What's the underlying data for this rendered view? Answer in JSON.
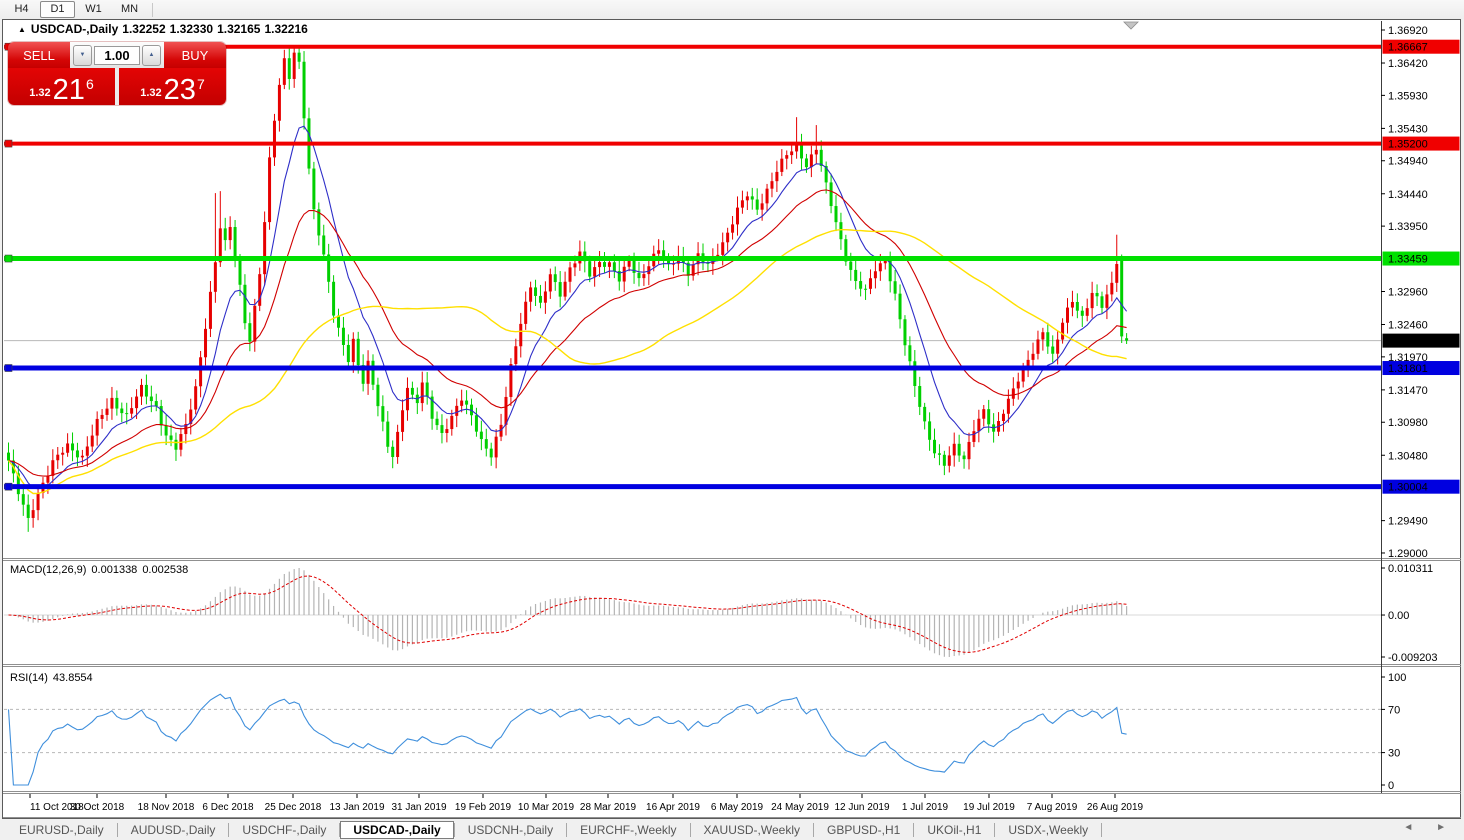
{
  "toolbar": {
    "timeframes": [
      {
        "label": "H4",
        "active": false
      },
      {
        "label": "D1",
        "active": true
      },
      {
        "label": "W1",
        "active": false
      },
      {
        "label": "MN",
        "active": false
      }
    ]
  },
  "icons": {
    "collapse_panel": "▲",
    "spin_up": "▲",
    "spin_down": "▼",
    "shift_marker": "▼",
    "tab_scroll": "◄ ►"
  },
  "chart": {
    "title": {
      "symbol": "USDCAD-,Daily",
      "open": "1.32252",
      "high": "1.32330",
      "low": "1.32165",
      "close": "1.32216"
    },
    "one_click": {
      "sell_label": "SELL",
      "buy_label": "BUY",
      "volume": "1.00",
      "sell_price": {
        "small": "1.32",
        "big": "21",
        "sup": "6"
      },
      "buy_price": {
        "small": "1.32",
        "big": "23",
        "sup": "7"
      }
    }
  },
  "chart_data": {
    "type": "candlestick+indicators",
    "symbol": "USDCAD",
    "timeframe": "Daily",
    "current_bar": {
      "open": 1.32252,
      "high": 1.3233,
      "low": 1.32165,
      "close": 1.32216
    },
    "num_candles": 228,
    "price_anchors": [
      [
        0,
        1.304
      ],
      [
        2,
        1.299
      ],
      [
        4,
        1.295
      ],
      [
        6,
        1.2992
      ],
      [
        9,
        1.3036
      ],
      [
        12,
        1.3062
      ],
      [
        15,
        1.3046
      ],
      [
        18,
        1.3096
      ],
      [
        21,
        1.3132
      ],
      [
        24,
        1.3108
      ],
      [
        27,
        1.3148
      ],
      [
        30,
        1.3122
      ],
      [
        32,
        1.3078
      ],
      [
        34,
        1.3058
      ],
      [
        36,
        1.3092
      ],
      [
        38,
        1.3152
      ],
      [
        40,
        1.3245
      ],
      [
        42,
        1.3338
      ],
      [
        43,
        1.3392
      ],
      [
        44,
        1.3368
      ],
      [
        45,
        1.3395
      ],
      [
        46,
        1.3348
      ],
      [
        47,
        1.3305
      ],
      [
        48,
        1.3252
      ],
      [
        49,
        1.3222
      ],
      [
        50,
        1.3268
      ],
      [
        51,
        1.3322
      ],
      [
        52,
        1.34
      ],
      [
        53,
        1.3495
      ],
      [
        54,
        1.356
      ],
      [
        55,
        1.3612
      ],
      [
        56,
        1.3648
      ],
      [
        57,
        1.3622
      ],
      [
        58,
        1.3655
      ],
      [
        59,
        1.3638
      ],
      [
        60,
        1.356
      ],
      [
        61,
        1.348
      ],
      [
        62,
        1.342
      ],
      [
        63,
        1.3388
      ],
      [
        64,
        1.3352
      ],
      [
        65,
        1.331
      ],
      [
        66,
        1.3262
      ],
      [
        67,
        1.3235
      ],
      [
        68,
        1.3212
      ],
      [
        69,
        1.3192
      ],
      [
        70,
        1.3222
      ],
      [
        71,
        1.3188
      ],
      [
        72,
        1.3162
      ],
      [
        73,
        1.3188
      ],
      [
        74,
        1.3155
      ],
      [
        75,
        1.3122
      ],
      [
        76,
        1.3092
      ],
      [
        77,
        1.3062
      ],
      [
        78,
        1.3048
      ],
      [
        79,
        1.3082
      ],
      [
        80,
        1.3122
      ],
      [
        81,
        1.3152
      ],
      [
        82,
        1.3135
      ],
      [
        83,
        1.3128
      ],
      [
        84,
        1.3155
      ],
      [
        85,
        1.3132
      ],
      [
        86,
        1.3108
      ],
      [
        88,
        1.3082
      ],
      [
        90,
        1.3105
      ],
      [
        92,
        1.3132
      ],
      [
        94,
        1.3108
      ],
      [
        96,
        1.3072
      ],
      [
        98,
        1.3048
      ],
      [
        100,
        1.3092
      ],
      [
        102,
        1.3182
      ],
      [
        104,
        1.3252
      ],
      [
        106,
        1.3305
      ],
      [
        108,
        1.3272
      ],
      [
        110,
        1.3322
      ],
      [
        112,
        1.3295
      ],
      [
        114,
        1.333
      ],
      [
        116,
        1.3352
      ],
      [
        118,
        1.3322
      ],
      [
        120,
        1.3342
      ],
      [
        122,
        1.3338
      ],
      [
        124,
        1.3312
      ],
      [
        126,
        1.3342
      ],
      [
        128,
        1.3315
      ],
      [
        130,
        1.3338
      ],
      [
        132,
        1.3358
      ],
      [
        134,
        1.3332
      ],
      [
        136,
        1.3352
      ],
      [
        138,
        1.3325
      ],
      [
        140,
        1.3348
      ],
      [
        142,
        1.3335
      ],
      [
        144,
        1.3358
      ],
      [
        146,
        1.3385
      ],
      [
        148,
        1.3418
      ],
      [
        150,
        1.3442
      ],
      [
        152,
        1.3422
      ],
      [
        154,
        1.345
      ],
      [
        156,
        1.3478
      ],
      [
        158,
        1.3502
      ],
      [
        160,
        1.3518
      ],
      [
        162,
        1.3488
      ],
      [
        164,
        1.3512
      ],
      [
        166,
        1.3455
      ],
      [
        168,
        1.3402
      ],
      [
        170,
        1.3348
      ],
      [
        172,
        1.3308
      ],
      [
        174,
        1.3295
      ],
      [
        176,
        1.3332
      ],
      [
        178,
        1.3345
      ],
      [
        180,
        1.3288
      ],
      [
        182,
        1.3215
      ],
      [
        184,
        1.3155
      ],
      [
        186,
        1.3098
      ],
      [
        188,
        1.3052
      ],
      [
        190,
        1.3032
      ],
      [
        192,
        1.3062
      ],
      [
        194,
        1.3045
      ],
      [
        196,
        1.3088
      ],
      [
        198,
        1.3112
      ],
      [
        200,
        1.3082
      ],
      [
        202,
        1.3118
      ],
      [
        204,
        1.3148
      ],
      [
        206,
        1.3175
      ],
      [
        208,
        1.3205
      ],
      [
        210,
        1.3238
      ],
      [
        212,
        1.3198
      ],
      [
        214,
        1.3248
      ],
      [
        216,
        1.3282
      ],
      [
        218,
        1.3258
      ],
      [
        220,
        1.3295
      ],
      [
        222,
        1.3272
      ],
      [
        224,
        1.3305
      ],
      [
        225,
        1.3343
      ],
      [
        226,
        1.3228
      ],
      [
        227,
        1.32216
      ]
    ],
    "bar_overrides": {
      "4": {
        "l": 1.2932
      },
      "42": {
        "h": 1.3445
      },
      "43": {
        "h": 1.3448
      },
      "56": {
        "h": 1.3662
      },
      "58": {
        "h": 1.36667
      },
      "160": {
        "h": 1.356
      },
      "164": {
        "h": 1.3548
      },
      "225": {
        "h": 1.3382
      },
      "226": {
        "o": 1.3343,
        "h": 1.3352,
        "l": 1.3218,
        "c": 1.3228
      },
      "227": {
        "o": 1.32252,
        "h": 1.3233,
        "l": 1.32165,
        "c": 1.32216
      }
    },
    "y_axis_ticks": [
      "1.36920",
      "1.36420",
      "1.35930",
      "1.35430",
      "1.34940",
      "1.34440",
      "1.33950",
      "1.32960",
      "1.32460",
      "1.31970",
      "1.31470",
      "1.30980",
      "1.30480",
      "1.29490",
      "1.29000"
    ],
    "levels": [
      {
        "price": 1.36667,
        "color": "#f00000",
        "width": 4,
        "label": "1.36667",
        "label_fg": "#ffffff"
      },
      {
        "price": 1.352,
        "color": "#f00000",
        "width": 4,
        "label": "1.35200",
        "label_fg": "#ffffff"
      },
      {
        "price": 1.33459,
        "color": "#00e000",
        "width": 5,
        "label": "1.33459",
        "label_fg": "#000000"
      },
      {
        "price": 1.31801,
        "color": "#0000e0",
        "width": 5,
        "label": "1.31801",
        "label_fg": "#ffffff"
      },
      {
        "price": 1.30004,
        "color": "#0000e0",
        "width": 5,
        "label": "1.30004",
        "label_fg": "#ffffff"
      }
    ],
    "current_price": {
      "value": 1.32216,
      "label": "1.32216",
      "line_color": "#b8b8b8",
      "badge_bg": "#000000",
      "badge_fg": "#ffffff"
    },
    "x_labels": [
      "11 Oct 2018",
      "30 Oct 2018",
      "18 Nov 2018",
      "6 Dec 2018",
      "25 Dec 2018",
      "13 Jan 2019",
      "31 Jan 2019",
      "19 Feb 2019",
      "10 Mar 2019",
      "28 Mar 2019",
      "16 Apr 2019",
      "6 May 2019",
      "24 May 2019",
      "12 Jun 2019",
      "1 Jul 2019",
      "19 Jul 2019",
      "7 Aug 2019",
      "26 Aug 2019"
    ],
    "macd": {
      "label": "MACD(12,26,9)",
      "value": "0.001338",
      "signal_value": "0.002538",
      "axis_labels": [
        "0.010311",
        "0.00",
        "-0.009203"
      ],
      "range": [
        -0.009203,
        0.010311
      ],
      "params": {
        "fast": 12,
        "slow": 26,
        "signal": 9
      }
    },
    "rsi": {
      "label": "RSI(14)",
      "value": "43.8554",
      "period": 14,
      "axis_labels": [
        "100",
        "70",
        "30",
        "0"
      ],
      "level_lines": [
        70,
        30
      ],
      "range": [
        0,
        100
      ]
    },
    "moving_averages": [
      {
        "period": 10,
        "type": "ema",
        "color": "#2e2ec8"
      },
      {
        "period": 25,
        "type": "ema",
        "color": "#d00000"
      },
      {
        "period": 55,
        "type": "sma",
        "color": "#ffe000"
      }
    ],
    "colors": {
      "bull": "#e60000",
      "bear": "#00cf00",
      "macd_hist": "#b4b4b4",
      "macd_signal": "#e00000",
      "rsi_line": "#3f8fdc"
    }
  },
  "tabs": [
    {
      "label": "EURUSD-,Daily",
      "active": false
    },
    {
      "label": "AUDUSD-,Daily",
      "active": false
    },
    {
      "label": "USDCHF-,Daily",
      "active": false
    },
    {
      "label": "USDCAD-,Daily",
      "active": true
    },
    {
      "label": "USDCNH-,Daily",
      "active": false
    },
    {
      "label": "EURCHF-,Weekly",
      "active": false
    },
    {
      "label": "XAUUSD-,Weekly",
      "active": false
    },
    {
      "label": "GBPUSD-,H1",
      "active": false
    },
    {
      "label": "UKOil-,H1",
      "active": false
    },
    {
      "label": "USDX-,Weekly",
      "active": false
    }
  ]
}
